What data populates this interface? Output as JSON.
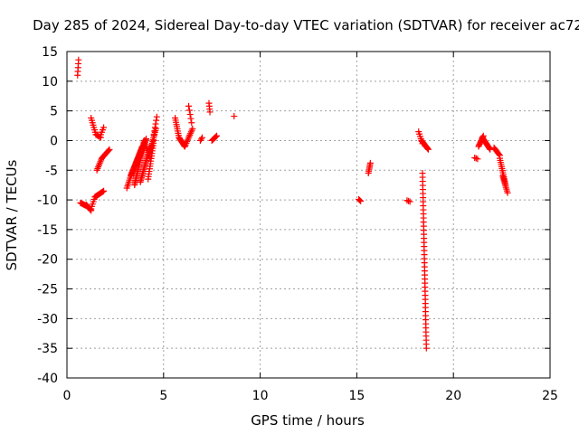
{
  "chart_data": {
    "type": "scatter",
    "title": "Day 285 of 2024, Sidereal Day-to-day VTEC variation (SDTVAR) for receiver ac72",
    "xlabel": "GPS time / hours",
    "ylabel": "SDTVAR / TECUs",
    "xlim": [
      0,
      25
    ],
    "ylim": [
      -40,
      15
    ],
    "xticks": [
      0,
      5,
      10,
      15,
      20,
      25
    ],
    "yticks": [
      -40,
      -35,
      -30,
      -25,
      -20,
      -15,
      -10,
      -5,
      0,
      5,
      10,
      15
    ],
    "grid": true,
    "marker": "+",
    "color": "#ff0000",
    "segments": [
      {
        "x0": 0.55,
        "x1": 0.6,
        "y0": 11.0,
        "y1": 13.6,
        "n": 5
      },
      {
        "x0": 0.7,
        "x1": 1.0,
        "y0": -10.5,
        "y1": -11.0,
        "n": 8
      },
      {
        "x0": 1.0,
        "x1": 1.25,
        "y0": -10.8,
        "y1": -11.8,
        "n": 8
      },
      {
        "x0": 1.25,
        "x1": 1.45,
        "y0": -11.5,
        "y1": -9.5,
        "n": 6
      },
      {
        "x0": 1.45,
        "x1": 1.9,
        "y0": -9.5,
        "y1": -8.5,
        "n": 12
      },
      {
        "x0": 1.25,
        "x1": 1.5,
        "y0": 3.8,
        "y1": 1.0,
        "n": 8
      },
      {
        "x0": 1.5,
        "x1": 1.75,
        "y0": 1.0,
        "y1": 0.5,
        "n": 5
      },
      {
        "x0": 1.75,
        "x1": 1.9,
        "y0": 1.0,
        "y1": 2.2,
        "n": 4
      },
      {
        "x0": 1.55,
        "x1": 1.8,
        "y0": -5.0,
        "y1": -3.0,
        "n": 8
      },
      {
        "x0": 1.8,
        "x1": 2.2,
        "y0": -3.0,
        "y1": -1.5,
        "n": 10
      },
      {
        "x0": 3.1,
        "x1": 3.4,
        "y0": -8.0,
        "y1": -5.0,
        "n": 10
      },
      {
        "x0": 3.3,
        "x1": 3.9,
        "y0": -6.0,
        "y1": -1.0,
        "n": 30
      },
      {
        "x0": 3.5,
        "x1": 4.0,
        "y0": -7.5,
        "y1": 0.0,
        "n": 30
      },
      {
        "x0": 3.6,
        "x1": 4.1,
        "y0": -4.0,
        "y1": 0.3,
        "n": 24
      },
      {
        "x0": 3.8,
        "x1": 4.3,
        "y0": -7.0,
        "y1": -1.0,
        "n": 24
      },
      {
        "x0": 4.0,
        "x1": 4.3,
        "y0": 0.0,
        "y1": -3.0,
        "n": 10
      },
      {
        "x0": 4.2,
        "x1": 4.5,
        "y0": -6.5,
        "y1": 0.0,
        "n": 16
      },
      {
        "x0": 4.3,
        "x1": 4.6,
        "y0": -2.0,
        "y1": 2.0,
        "n": 14
      },
      {
        "x0": 4.5,
        "x1": 4.65,
        "y0": 1.0,
        "y1": 4.0,
        "n": 6
      },
      {
        "x0": 5.6,
        "x1": 5.8,
        "y0": 3.8,
        "y1": 0.5,
        "n": 10
      },
      {
        "x0": 5.8,
        "x1": 6.1,
        "y0": 0.5,
        "y1": -1.0,
        "n": 12
      },
      {
        "x0": 6.1,
        "x1": 6.5,
        "y0": -1.0,
        "y1": 2.0,
        "n": 12
      },
      {
        "x0": 6.3,
        "x1": 6.45,
        "y0": 5.8,
        "y1": 3.0,
        "n": 5
      },
      {
        "x0": 6.9,
        "x1": 7.0,
        "y0": 0.0,
        "y1": 0.5,
        "n": 3
      },
      {
        "x0": 7.35,
        "x1": 7.4,
        "y0": 6.3,
        "y1": 4.8,
        "n": 4
      },
      {
        "x0": 7.5,
        "x1": 7.75,
        "y0": 0.0,
        "y1": 0.8,
        "n": 7
      },
      {
        "x0": 8.65,
        "x1": 8.65,
        "y0": 4.1,
        "y1": 4.1,
        "n": 1
      },
      {
        "x0": 15.1,
        "x1": 15.2,
        "y0": -9.9,
        "y1": -10.2,
        "n": 3
      },
      {
        "x0": 15.6,
        "x1": 15.7,
        "y0": -5.5,
        "y1": -3.8,
        "n": 7
      },
      {
        "x0": 17.6,
        "x1": 17.75,
        "y0": -10.1,
        "y1": -10.3,
        "n": 3
      },
      {
        "x0": 18.2,
        "x1": 18.4,
        "y0": 1.5,
        "y1": -0.5,
        "n": 6
      },
      {
        "x0": 18.35,
        "x1": 18.7,
        "y0": 0.0,
        "y1": -1.5,
        "n": 12
      },
      {
        "x0": 18.4,
        "x1": 18.6,
        "y0": -5.5,
        "y1": -35.0,
        "n": 44
      },
      {
        "x0": 21.1,
        "x1": 21.25,
        "y0": -2.9,
        "y1": -3.1,
        "n": 3
      },
      {
        "x0": 21.3,
        "x1": 21.55,
        "y0": -1.0,
        "y1": 0.8,
        "n": 10
      },
      {
        "x0": 21.5,
        "x1": 21.9,
        "y0": 0.5,
        "y1": -1.5,
        "n": 14
      },
      {
        "x0": 22.1,
        "x1": 22.4,
        "y0": -1.2,
        "y1": -2.5,
        "n": 8
      },
      {
        "x0": 22.4,
        "x1": 22.7,
        "y0": -3.0,
        "y1": -7.5,
        "n": 14
      },
      {
        "x0": 22.55,
        "x1": 22.8,
        "y0": -6.0,
        "y1": -8.8,
        "n": 10
      }
    ]
  }
}
